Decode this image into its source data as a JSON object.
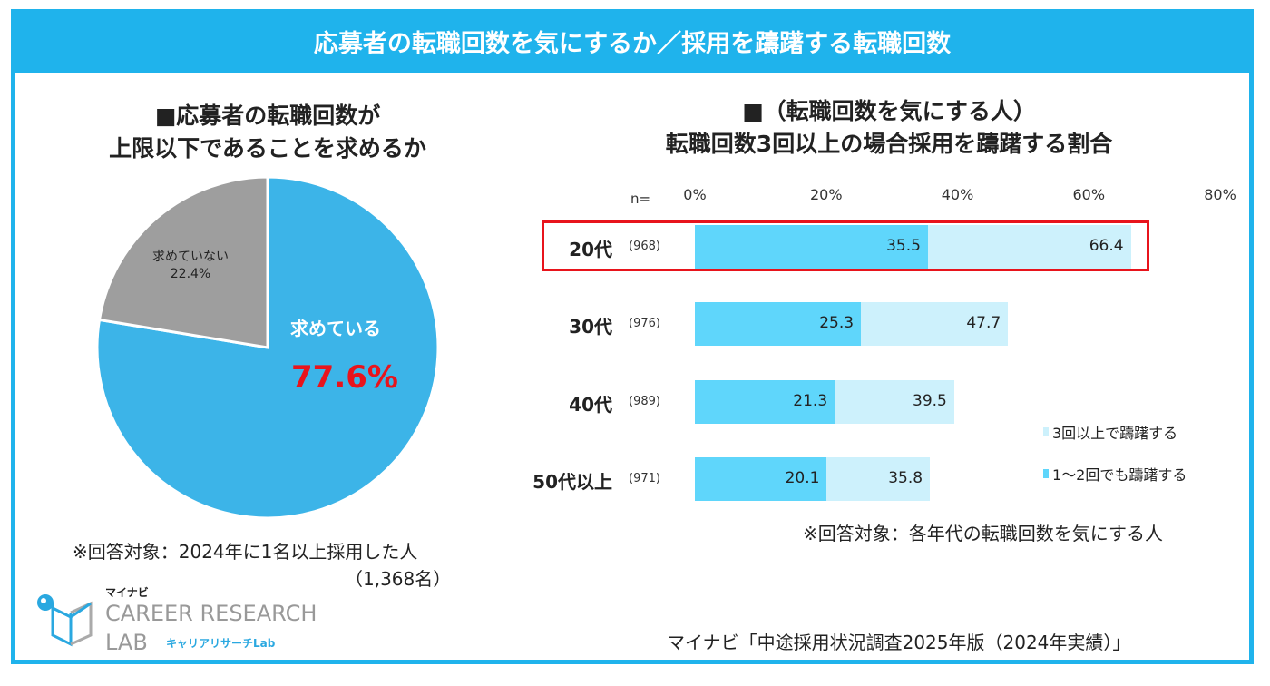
{
  "header": {
    "title": "応募者の転職回数を気にするか／採用を躊躇する転職回数"
  },
  "chart_data": [
    {
      "type": "pie",
      "title_lines": [
        "■応募者の転職回数が",
        "上限以下であることを求めるか"
      ],
      "slices": [
        {
          "label": "求めている",
          "value": 77.6,
          "display": "77.6%",
          "color": "#3cb4e8"
        },
        {
          "label": "求めていない",
          "value": 22.4,
          "display": "22.4%",
          "color": "#9e9e9e"
        }
      ],
      "note_lines": [
        "※回答対象：2024年に1名以上採用した人",
        "（1,368名）"
      ]
    },
    {
      "type": "bar",
      "stacked": "overlay",
      "orientation": "horizontal",
      "title_lines": [
        "■（転職回数を気にする人）",
        "転職回数3回以上の場合採用を躊躇する割合"
      ],
      "n_label": "n=",
      "categories": [
        "20代",
        "30代",
        "40代",
        "50代以上"
      ],
      "n_values": [
        "(968)",
        "(976)",
        "(989)",
        "(971)"
      ],
      "xlim": [
        0,
        80
      ],
      "ticks": [
        "0%",
        "20%",
        "40%",
        "60%",
        "80%"
      ],
      "tick_values": [
        0,
        20,
        40,
        60,
        80
      ],
      "series": [
        {
          "name": "1～2回でも躊躇する",
          "values": [
            35.5,
            25.3,
            21.3,
            20.1
          ],
          "color": "#5fd6fb"
        },
        {
          "name": "3回以上で躊躇する",
          "values": [
            66.4,
            47.7,
            39.5,
            35.8
          ],
          "color": "#cdf1fc"
        }
      ],
      "highlight": "20代",
      "highlight_color": "#e8141c",
      "legend": "bottom-right",
      "note": "※回答対象：各年代の転職回数を気にする人"
    }
  ],
  "logo": {
    "brand": "マイナビ",
    "line1": "CAREER RESEARCH",
    "line2": "LAB",
    "sub": "キャリアリサーチLab"
  },
  "source": "マイナビ「中途採用状況調査2025年版（2024年実績）」"
}
